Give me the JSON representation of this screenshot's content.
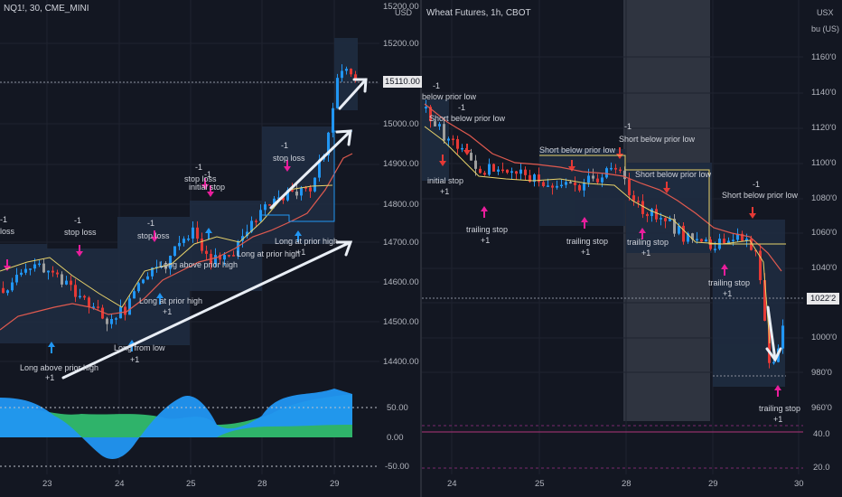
{
  "left": {
    "title": "NQ1!, 30, CME_MINI",
    "currency": "USD",
    "last_price": "15110.00",
    "price_ticks": [
      "15200.00",
      "15100.00",
      "15000.00",
      "14900.00",
      "14800.00",
      "14700.00",
      "14600.00",
      "14500.00",
      "14400.00"
    ],
    "osc_ticks": [
      "50.00",
      "0.00",
      "-50.00"
    ],
    "date_ticks": [
      "23",
      "24",
      "25",
      "28",
      "29"
    ],
    "annotations": {
      "stop_loss_1": "stop loss",
      "stop_loss_2": "stop loss",
      "stop_loss_3": "stop loss",
      "stop_loss_4": "stop loss",
      "stop_loss_5": "stop loss",
      "initial_stop": "initial stop",
      "long_above_prior_high_1": "Long above prior high",
      "long_above_prior_high_2": "Long above prior high",
      "long_from_low": "Long from low",
      "long_at_prior_high_1": "Long at prior high",
      "long_at_prior_high_2": "Long at prior high",
      "long_at_prior_high_3": "Long at prior high",
      "minus_one": "-1",
      "plus_one": "+1",
      "loss_clip": "loss"
    }
  },
  "right": {
    "title": "Wheat Futures, 1h, CBOT",
    "currency_1": "USX",
    "currency_2": "bu (US)",
    "last_price": "1022'2",
    "price_ticks": [
      "1160'0",
      "1140'0",
      "1120'0",
      "1100'0",
      "1080'0",
      "1060'0",
      "1040'0",
      "1020'0",
      "1000'0",
      "980'0",
      "960'0"
    ],
    "osc_ticks": [
      "40.0",
      "20.0"
    ],
    "date_ticks": [
      "24",
      "25",
      "28",
      "29",
      "30"
    ],
    "annotations": {
      "below_prior_low": "below prior low",
      "short_below_prior_low": "Short below prior low",
      "initial_stop": "initial stop",
      "trailing_stop": "trailing stop",
      "minus_one": "-1",
      "plus_one": "+1"
    }
  },
  "colors": {
    "bg": "#131722",
    "up": "#2196f3",
    "down": "#e53935",
    "neutral": "#9e9e9e",
    "trade_box": "#1e2b3f",
    "entry_arrow": "#2196f3",
    "exit_arrow": "#e91e9c",
    "osc_blue": "#2196f3",
    "osc_green": "#2fb36a",
    "white_arrow": "#e9eef5",
    "weekend_shade": "#3a3f4b"
  }
}
